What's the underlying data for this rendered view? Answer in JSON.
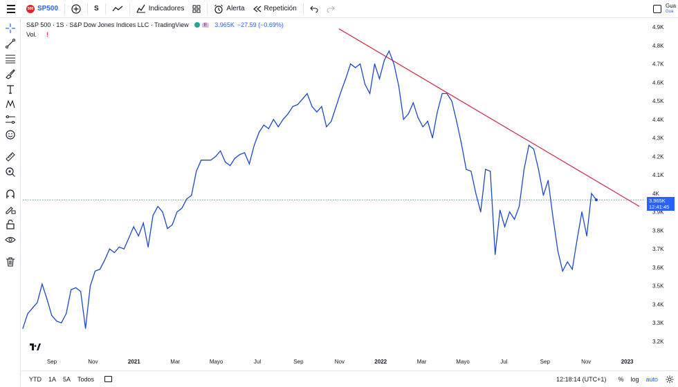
{
  "toolbar": {
    "symbol": "SP500",
    "symbol_logo": "500",
    "interval": "S",
    "indicators_label": "Indicadores",
    "alert_label": "Alerta",
    "replay_label": "Repetición",
    "save_label": "Gua",
    "save_sub": "Gua"
  },
  "legend": {
    "title": "S&P 500 · 1S · S&P Dow Jones Indices LLC · TradingView",
    "badge": "E",
    "price": "3.965K",
    "change": "−27.59 (−0.69%)",
    "vol_label": "Vol.",
    "vol_warn": "!"
  },
  "price_label": {
    "value": "3.965K",
    "countdown": "12:41:45"
  },
  "colors": {
    "line": "#1848cc",
    "trend": "#d0253f",
    "accent": "#2962ff"
  },
  "bottom": {
    "ranges": [
      "YTD",
      "1A",
      "5A",
      "Todos"
    ],
    "time": "12:18:14 (UTC+1)",
    "percent": "%",
    "log": "log",
    "auto": "auto"
  },
  "chart_data": {
    "type": "line",
    "title": "S&P 500 · 1S · S&P Dow Jones Indices LLC · TradingView",
    "y_ticks": [
      "4.9K",
      "4.8K",
      "4.7K",
      "4.6K",
      "4.5K",
      "4.4K",
      "4.3K",
      "4.2K",
      "4.1K",
      "4K",
      "3.9K",
      "3.8K",
      "3.7K",
      "3.6K",
      "3.5K",
      "3.4K",
      "3.3K",
      "3.2K"
    ],
    "x_ticks": [
      "Sep",
      "Nov",
      "2021",
      "Mar",
      "Mayo",
      "Jul",
      "Sep",
      "Nov",
      "2022",
      "Mar",
      "Mayo",
      "Jul",
      "Sep",
      "Nov",
      "2023"
    ],
    "ylim": [
      3200,
      4900
    ],
    "series": [
      {
        "values": [
          3270,
          3350,
          3380,
          3410,
          3510,
          3430,
          3340,
          3310,
          3300,
          3350,
          3480,
          3490,
          3470,
          3270,
          3500,
          3580,
          3590,
          3640,
          3700,
          3680,
          3710,
          3700,
          3760,
          3820,
          3770,
          3840,
          3710,
          3880,
          3930,
          3900,
          3810,
          3830,
          3900,
          3920,
          3970,
          3990,
          4120,
          4180,
          4180,
          4180,
          4200,
          4230,
          4170,
          4150,
          4190,
          4210,
          4220,
          4160,
          4260,
          4330,
          4370,
          4350,
          4400,
          4360,
          4400,
          4430,
          4470,
          4480,
          4510,
          4540,
          4470,
          4440,
          4470,
          4360,
          4390,
          4470,
          4550,
          4620,
          4700,
          4680,
          4700,
          4590,
          4540,
          4700,
          4620,
          4720,
          4770,
          4700,
          4580,
          4400,
          4430,
          4490,
          4410,
          4360,
          4390,
          4300,
          4440,
          4540,
          4540,
          4500,
          4390,
          4270,
          4130,
          4120,
          4000,
          3900,
          4130,
          4120,
          3670,
          3910,
          3820,
          3900,
          3860,
          3930,
          4130,
          4260,
          4240,
          4130,
          3990,
          4070,
          3870,
          3690,
          3580,
          3630,
          3590,
          3750,
          3900,
          3770,
          4000,
          3965
        ]
      }
    ],
    "trendline": [
      [
        4890,
        4890
      ],
      [
        3930,
        3930
      ]
    ]
  }
}
